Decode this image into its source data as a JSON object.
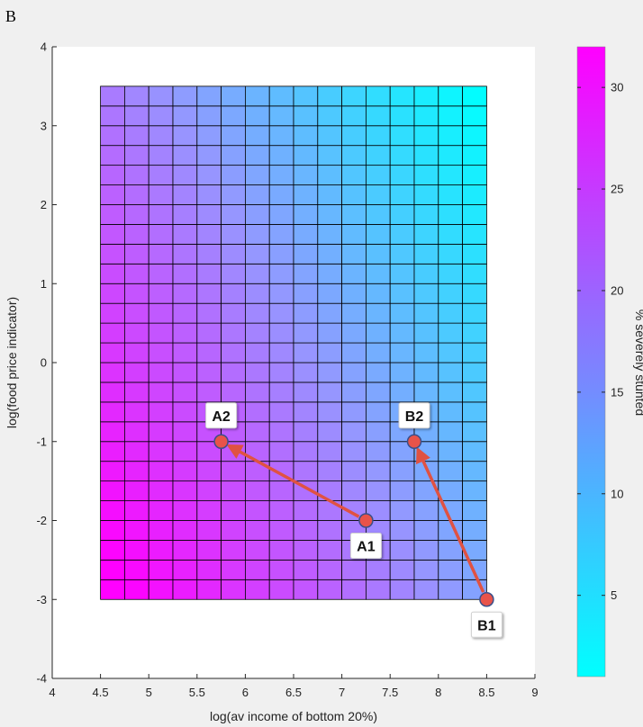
{
  "panel_label": "B",
  "colors": {
    "figure_background": "#f0f0f0",
    "axes_background": "#ffffff",
    "colormap_low": "#00ffff",
    "colormap_mid": "#9999ff",
    "colormap_high": "#ff00ff",
    "point_fill": "#e8534a",
    "point_edge": "#3a4f8a",
    "arrow": "#e05242"
  },
  "chart_data": {
    "type": "heatmap",
    "title": "",
    "xlabel": "log(av income of bottom 20%)",
    "ylabel": "log(food price indicator)",
    "xlim": [
      4,
      9
    ],
    "ylim": [
      -4,
      4
    ],
    "xticks": [
      "4",
      "4.5",
      "5",
      "5.5",
      "6",
      "6.5",
      "7",
      "7.5",
      "8",
      "8.5",
      "9"
    ],
    "yticks": [
      "4",
      "3",
      "2",
      "1",
      "0",
      "-1",
      "-2",
      "-3",
      "-4"
    ],
    "grid_x_range": [
      4.5,
      8.5
    ],
    "grid_y_range": [
      -3,
      3.5
    ],
    "grid_columns": 16,
    "grid_rows": 26,
    "colorbar": {
      "label": "% severely stunted",
      "range": [
        1,
        32
      ],
      "ticks": [
        "30",
        "25",
        "20",
        "15",
        "10",
        "5"
      ]
    },
    "points": [
      {
        "label": "A1",
        "x": 7.25,
        "y": -2.0
      },
      {
        "label": "A2",
        "x": 5.75,
        "y": -1.0
      },
      {
        "label": "B1",
        "x": 8.5,
        "y": -3.0
      },
      {
        "label": "B2",
        "x": 7.75,
        "y": -1.0
      }
    ],
    "arrows": [
      {
        "from": "A1",
        "to": "A2"
      },
      {
        "from": "B1",
        "to": "B2"
      }
    ]
  }
}
